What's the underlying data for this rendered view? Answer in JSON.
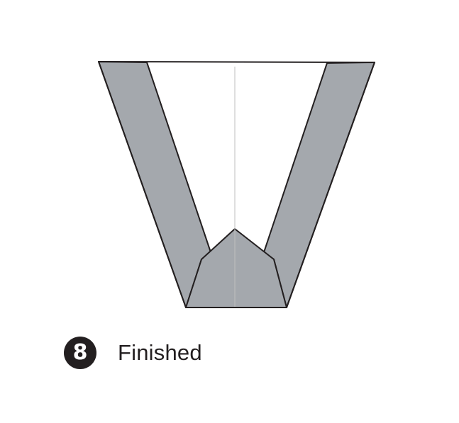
{
  "step": {
    "number": "8",
    "label": "Finished"
  },
  "colors": {
    "paper_fill": "#a4a8ad",
    "outline": "#231f20",
    "crease": "#bfbfbf",
    "background": "#ffffff"
  }
}
